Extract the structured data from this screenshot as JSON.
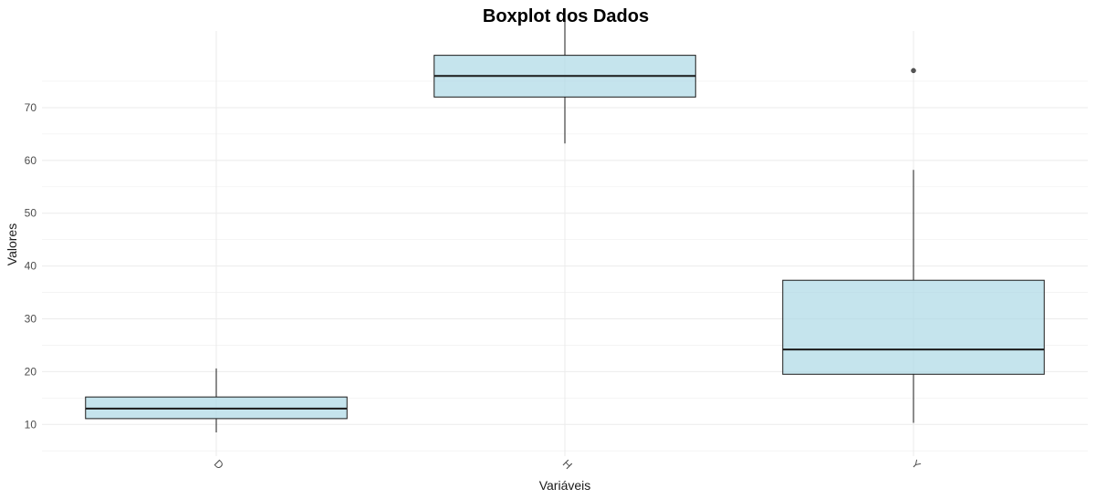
{
  "chart_data": {
    "type": "boxplot",
    "title": "Boxplot dos Dados",
    "xlabel": "Variáveis",
    "ylabel": "Valores",
    "ylim": [
      4.0,
      84.5
    ],
    "yticks": [
      10,
      20,
      30,
      40,
      50,
      60,
      70
    ],
    "grid": true,
    "categories": [
      "D",
      "H",
      "Y"
    ],
    "box_color": "#add8e6",
    "box_opacity": 0.7,
    "boxes": [
      {
        "category": "D",
        "whisker_low": 8.5,
        "q1": 11.1,
        "median": 13.0,
        "q3": 15.2,
        "whisker_high": 20.6,
        "outliers": []
      },
      {
        "category": "H",
        "whisker_low": 63.2,
        "q1": 72.0,
        "median": 76.0,
        "q3": 79.9,
        "whisker_high": 86.7,
        "outliers": []
      },
      {
        "category": "Y",
        "whisker_low": 10.3,
        "q1": 19.5,
        "median": 24.2,
        "q3": 37.3,
        "whisker_high": 58.2,
        "outliers": [
          77.0
        ]
      }
    ]
  }
}
